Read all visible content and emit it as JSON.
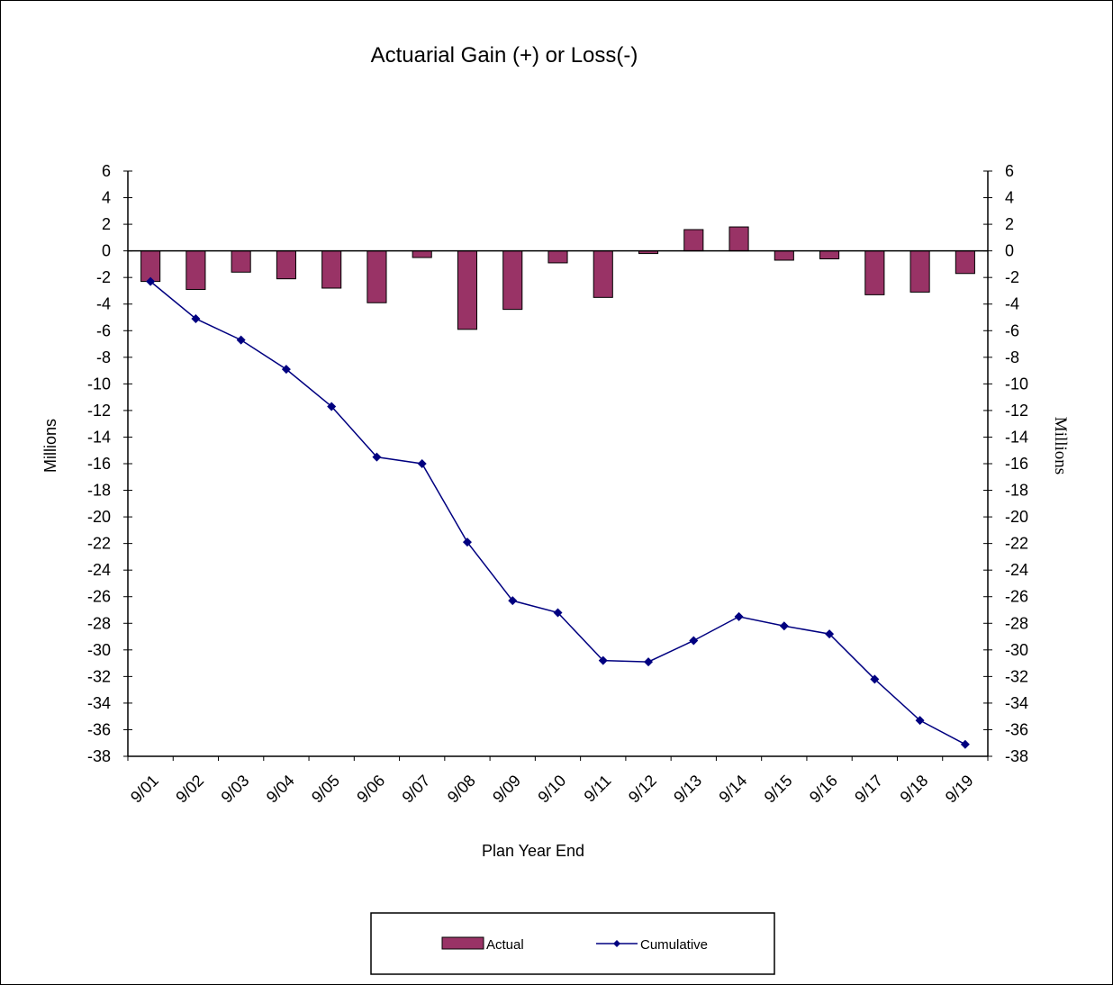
{
  "chart_data": {
    "type": "bar",
    "title": "Actuarial Gain (+) or Loss(-)",
    "xlabel": "Plan Year End",
    "ylabel": "Millions",
    "ylabel_right": "Millions",
    "ylim": [
      -38,
      6
    ],
    "ytick_step": 2,
    "categories": [
      "9/01",
      "9/02",
      "9/03",
      "9/04",
      "9/05",
      "9/06",
      "9/07",
      "9/08",
      "9/09",
      "9/10",
      "9/11",
      "9/12",
      "9/13",
      "9/14",
      "9/15",
      "9/16",
      "9/17",
      "9/18",
      "9/19"
    ],
    "series": [
      {
        "name": "Actual",
        "kind": "bar",
        "color": "#993366",
        "values": [
          -2.3,
          -2.9,
          -1.6,
          -2.1,
          -2.8,
          -3.9,
          -0.5,
          -5.9,
          -4.4,
          -0.9,
          -3.5,
          -0.2,
          1.6,
          1.8,
          -0.7,
          -0.6,
          -3.3,
          -3.1,
          -1.7
        ]
      },
      {
        "name": "Cumulative",
        "kind": "line",
        "marker": "diamond",
        "color": "#000080",
        "values": [
          -2.3,
          -5.1,
          -6.7,
          -8.9,
          -11.7,
          -15.5,
          -16.0,
          -21.9,
          -26.3,
          -27.2,
          -30.8,
          -30.9,
          -29.3,
          -27.5,
          -28.2,
          -28.8,
          -32.2,
          -35.3,
          -37.1
        ]
      }
    ],
    "grid": false,
    "legend": "bottom-center"
  }
}
